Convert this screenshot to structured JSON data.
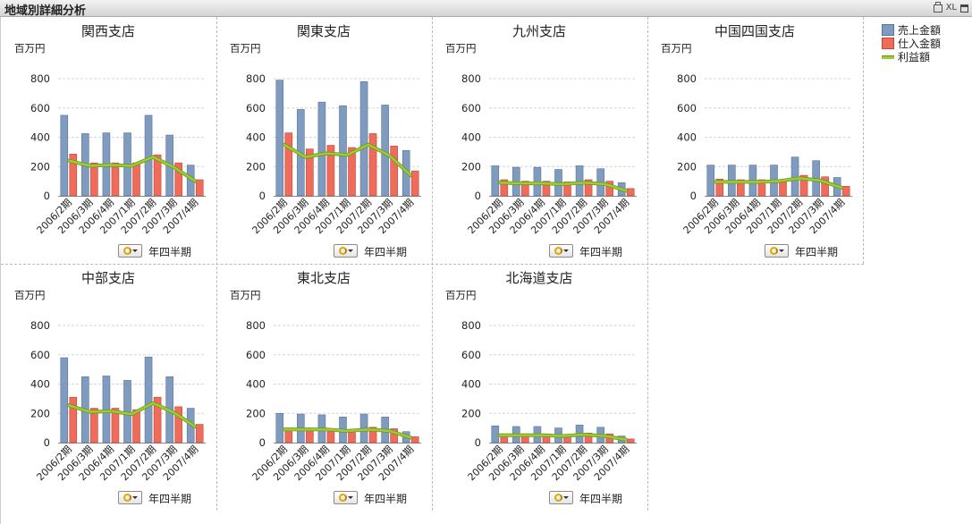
{
  "window": {
    "title": "地域別詳細分析",
    "icons": [
      "print-icon",
      "xl-export",
      "maximize-icon"
    ],
    "xl_label": "XL"
  },
  "legend": [
    {
      "name": "売上金額",
      "color": "#7f9bc0",
      "kind": "bar"
    },
    {
      "name": "仕入金額",
      "color": "#f06c5a",
      "kind": "bar"
    },
    {
      "name": "利益額",
      "color": "#9acd32",
      "kind": "line"
    }
  ],
  "dimension_label": "年四半期",
  "y_unit": "百万円",
  "chart_data": [
    {
      "type": "bar",
      "title": "関西支店",
      "ylabel": "百万円",
      "xlabel": "年四半期",
      "ylim": [
        0,
        800
      ],
      "yticks": [
        0,
        200,
        400,
        600,
        800
      ],
      "categories": [
        "2006/2期",
        "2006/3期",
        "2006/4期",
        "2007/1期",
        "2007/2期",
        "2007/3期",
        "2007/4期"
      ],
      "series": [
        {
          "name": "売上金額",
          "values": [
            550,
            425,
            430,
            430,
            550,
            415,
            210
          ]
        },
        {
          "name": "仕入金額",
          "values": [
            285,
            225,
            225,
            225,
            280,
            225,
            110
          ]
        },
        {
          "name": "利益額",
          "type": "line",
          "values": [
            240,
            205,
            210,
            205,
            265,
            195,
            100
          ]
        }
      ]
    },
    {
      "type": "bar",
      "title": "関東支店",
      "ylabel": "百万円",
      "xlabel": "年四半期",
      "ylim": [
        0,
        800
      ],
      "yticks": [
        0,
        200,
        400,
        600,
        800
      ],
      "categories": [
        "2006/2期",
        "2006/3期",
        "2006/4期",
        "2007/1期",
        "2007/2期",
        "2007/3期",
        "2007/4期"
      ],
      "series": [
        {
          "name": "売上金額",
          "values": [
            790,
            590,
            640,
            615,
            780,
            620,
            310
          ]
        },
        {
          "name": "仕入金額",
          "values": [
            430,
            320,
            345,
            330,
            425,
            340,
            170
          ]
        },
        {
          "name": "利益額",
          "type": "line",
          "values": [
            350,
            265,
            290,
            280,
            350,
            275,
            140
          ]
        }
      ]
    },
    {
      "type": "bar",
      "title": "九州支店",
      "ylabel": "百万円",
      "xlabel": "年四半期",
      "ylim": [
        0,
        800
      ],
      "yticks": [
        0,
        200,
        400,
        600,
        800
      ],
      "categories": [
        "2006/2期",
        "2006/3期",
        "2006/4期",
        "2007/1期",
        "2007/2期",
        "2007/3期",
        "2007/4期"
      ],
      "series": [
        {
          "name": "売上金額",
          "values": [
            205,
            195,
            195,
            180,
            205,
            185,
            90
          ]
        },
        {
          "name": "仕入金額",
          "values": [
            110,
            100,
            100,
            95,
            110,
            100,
            50
          ]
        },
        {
          "name": "利益額",
          "type": "line",
          "values": [
            90,
            85,
            85,
            80,
            90,
            80,
            35
          ]
        }
      ]
    },
    {
      "type": "bar",
      "title": "中国四国支店",
      "ylabel": "百万円",
      "xlabel": "年四半期",
      "ylim": [
        0,
        800
      ],
      "yticks": [
        0,
        200,
        400,
        600,
        800
      ],
      "categories": [
        "2006/2期",
        "2006/3期",
        "2006/4期",
        "2007/1期",
        "2007/2期",
        "2007/3期",
        "2007/4期"
      ],
      "series": [
        {
          "name": "売上金額",
          "values": [
            210,
            210,
            210,
            210,
            265,
            240,
            125
          ]
        },
        {
          "name": "仕入金額",
          "values": [
            115,
            110,
            110,
            110,
            140,
            130,
            65
          ]
        },
        {
          "name": "利益額",
          "type": "line",
          "values": [
            95,
            95,
            95,
            100,
            120,
            105,
            55
          ]
        }
      ]
    },
    {
      "type": "bar",
      "title": "中部支店",
      "ylabel": "百万円",
      "xlabel": "年四半期",
      "ylim": [
        0,
        800
      ],
      "yticks": [
        0,
        200,
        400,
        600,
        800
      ],
      "categories": [
        "2006/2期",
        "2006/3期",
        "2006/4期",
        "2007/1期",
        "2007/2期",
        "2007/3期",
        "2007/4期"
      ],
      "series": [
        {
          "name": "売上金額",
          "values": [
            580,
            450,
            455,
            425,
            585,
            450,
            235
          ]
        },
        {
          "name": "仕入金額",
          "values": [
            310,
            235,
            235,
            225,
            310,
            245,
            125
          ]
        },
        {
          "name": "利益額",
          "type": "line",
          "values": [
            255,
            210,
            215,
            195,
            270,
            205,
            110
          ]
        }
      ]
    },
    {
      "type": "bar",
      "title": "東北支店",
      "ylabel": "百万円",
      "xlabel": "年四半期",
      "ylim": [
        0,
        800
      ],
      "yticks": [
        0,
        200,
        400,
        600,
        800
      ],
      "categories": [
        "2006/2期",
        "2006/3期",
        "2006/4期",
        "2007/1期",
        "2007/2期",
        "2007/3期",
        "2007/4期"
      ],
      "series": [
        {
          "name": "売上金額",
          "values": [
            200,
            195,
            190,
            175,
            195,
            175,
            75
          ]
        },
        {
          "name": "仕入金額",
          "values": [
            100,
            100,
            95,
            90,
            105,
            95,
            40
          ]
        },
        {
          "name": "利益額",
          "type": "line",
          "values": [
            90,
            90,
            90,
            80,
            90,
            80,
            35
          ]
        }
      ]
    },
    {
      "type": "bar",
      "title": "北海道支店",
      "ylabel": "百万円",
      "xlabel": "年四半期",
      "ylim": [
        0,
        800
      ],
      "yticks": [
        0,
        200,
        400,
        600,
        800
      ],
      "categories": [
        "2006/2期",
        "2006/3期",
        "2006/4期",
        "2007/1期",
        "2007/2期",
        "2007/3期",
        "2007/4期"
      ],
      "series": [
        {
          "name": "売上金額",
          "values": [
            115,
            110,
            110,
            100,
            120,
            105,
            45
          ]
        },
        {
          "name": "仕入金額",
          "values": [
            60,
            60,
            60,
            55,
            65,
            60,
            25
          ]
        },
        {
          "name": "利益額",
          "type": "line",
          "values": [
            50,
            50,
            50,
            45,
            55,
            45,
            20
          ]
        }
      ]
    }
  ]
}
